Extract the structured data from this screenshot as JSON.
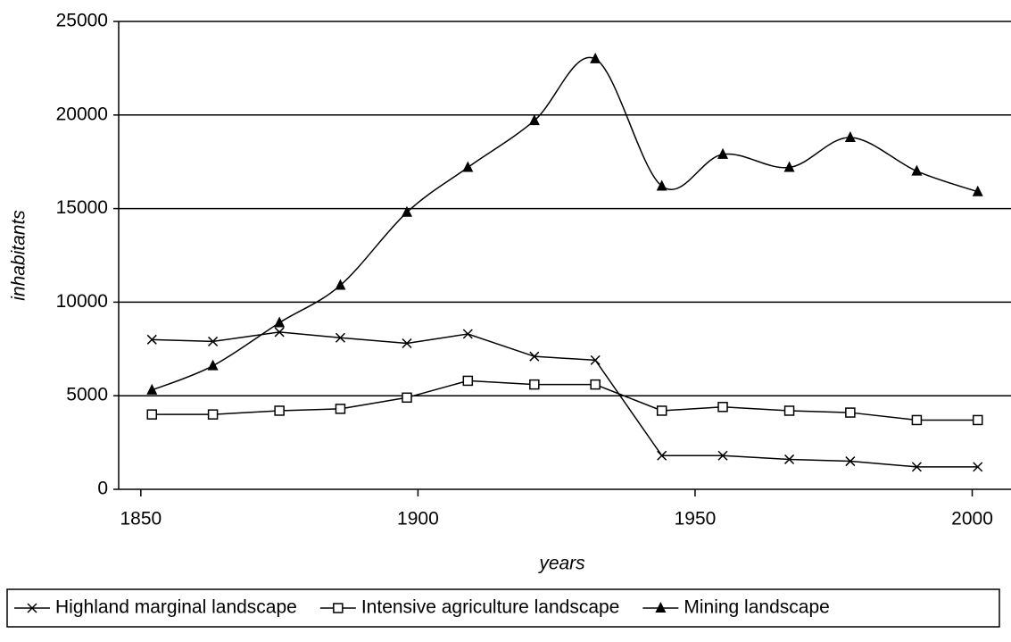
{
  "chart_data": {
    "type": "line",
    "x_label": "years",
    "y_label": "inhabitants",
    "x": [
      1852,
      1863,
      1875,
      1886,
      1898,
      1909,
      1921,
      1932,
      1944,
      1955,
      1967,
      1978,
      1990,
      2001
    ],
    "series": [
      {
        "name": "Highland marginal landscape",
        "color": "#000000",
        "marker": "x",
        "smooth": false,
        "values": [
          8000,
          7900,
          8400,
          8100,
          7800,
          8300,
          7100,
          6900,
          1800,
          1800,
          1600,
          1500,
          1200,
          1200
        ]
      },
      {
        "name": "Intensive agriculture landscape",
        "color": "#000000",
        "marker": "square",
        "smooth": false,
        "values": [
          4000,
          4000,
          4200,
          4300,
          4900,
          5800,
          5600,
          5600,
          4200,
          4400,
          4200,
          4100,
          3700,
          3700
        ]
      },
      {
        "name": "Mining landscape",
        "color": "#000000",
        "marker": "triangle",
        "smooth": true,
        "values": [
          5300,
          6600,
          8900,
          10900,
          14800,
          17200,
          19700,
          23000,
          16200,
          17900,
          17200,
          18800,
          17000,
          15900
        ]
      }
    ],
    "xlim": [
      1846,
      2007
    ],
    "xticks": [
      1850,
      1900,
      1950,
      2000
    ],
    "ylim": [
      0,
      25000
    ],
    "yticks": [
      0,
      5000,
      10000,
      15000,
      20000,
      25000
    ],
    "grid": true,
    "legend": "bottom"
  }
}
